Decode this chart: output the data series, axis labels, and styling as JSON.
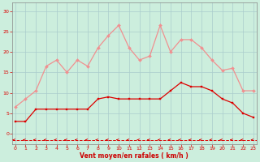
{
  "x": [
    0,
    1,
    2,
    3,
    4,
    5,
    6,
    7,
    8,
    9,
    10,
    11,
    12,
    13,
    14,
    15,
    16,
    17,
    18,
    19,
    20,
    21,
    22,
    23
  ],
  "wind_avg": [
    3,
    3,
    6,
    6,
    6,
    6,
    6,
    6,
    8.5,
    9,
    8.5,
    8.5,
    8.5,
    8.5,
    8.5,
    10.5,
    12.5,
    11.5,
    11.5,
    10.5,
    8.5,
    7.5,
    5,
    4
  ],
  "wind_gust": [
    6.5,
    8.5,
    10.5,
    16.5,
    18,
    15,
    18,
    16.5,
    21,
    24,
    26.5,
    21,
    18,
    19,
    26.5,
    20,
    23,
    23,
    21,
    18,
    15.5,
    16,
    10.5,
    10.5
  ],
  "avg_color": "#dd0000",
  "gust_color": "#f09090",
  "bg_color": "#cceedd",
  "grid_color": "#aacccc",
  "arrow_color": "#dd0000",
  "xlabel": "Vent moyen/en rafales ( km/h )",
  "xlabel_color": "#cc0000",
  "yticks": [
    0,
    5,
    10,
    15,
    20,
    25,
    30
  ],
  "xticks": [
    0,
    1,
    2,
    3,
    4,
    5,
    6,
    7,
    8,
    9,
    10,
    11,
    12,
    13,
    14,
    15,
    16,
    17,
    18,
    19,
    20,
    21,
    22,
    23
  ],
  "ylim": [
    -2.5,
    32
  ],
  "xlim": [
    -0.3,
    23.3
  ]
}
